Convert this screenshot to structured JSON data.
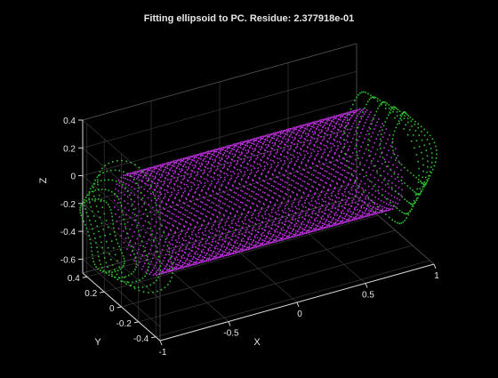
{
  "chart_data": {
    "type": "scatter",
    "title": "Fitting ellipsoid to PC. Residue: 2.377918e-01",
    "xlabel": "X",
    "ylabel": "Y",
    "zlabel": "Z",
    "xlim": [
      -1,
      1
    ],
    "ylim": [
      -0.45,
      0.45
    ],
    "zlim": [
      -0.7,
      0.4
    ],
    "x_ticks": [
      "-1",
      "-0.5",
      "0",
      "0.5",
      "1"
    ],
    "y_ticks": [
      "-0.4",
      "-0.2",
      "0",
      "0.2",
      "0.4"
    ],
    "z_ticks": [
      "-0.6",
      "-0.4",
      "-0.2",
      "0",
      "0.2",
      "0.4"
    ],
    "grid": true,
    "background_color": "#000000",
    "series": [
      {
        "color": "#c030e0",
        "shape": "cylinder",
        "axis": "x",
        "x_range": [
          -0.85,
          0.85
        ],
        "center_y": 0,
        "center_z": -0.15,
        "radius": 0.32
      },
      {
        "color": "#30c030",
        "shape": "end-cap ellipsoid surfaces",
        "axis": "x",
        "x_positions": [
          -0.9,
          0.9
        ],
        "center_y": 0,
        "center_z": -0.15,
        "radius": 0.42
      }
    ]
  }
}
